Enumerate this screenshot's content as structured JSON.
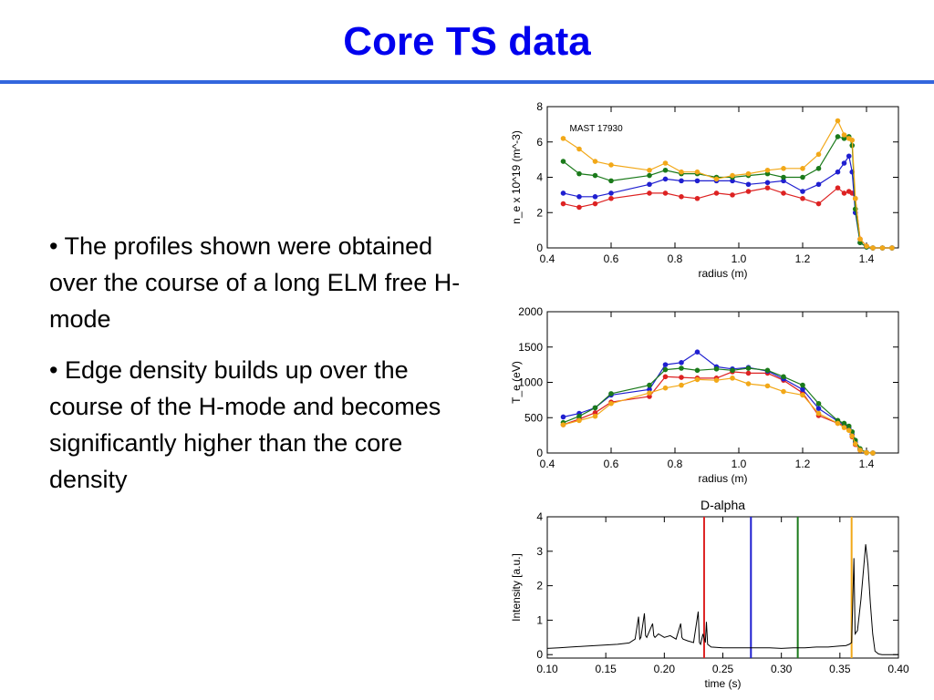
{
  "slide": {
    "title": "Core TS data",
    "title_color": "#0000ee",
    "rule_color": "#3366dd",
    "bullets": [
      "• The profiles shown were obtained over the course of a long ELM free H-mode",
      "• Edge density builds up over the course of the H-mode and becomes significantly higher than the core density"
    ]
  },
  "series_colors": {
    "red": "#dd2222",
    "blue": "#1f1fd0",
    "green": "#1a7a1a",
    "orange": "#f2a818"
  },
  "chart_data": [
    {
      "type": "line",
      "title": "",
      "annotation": "MAST 17930",
      "xlabel": "radius (m)",
      "ylabel": "n_e x 10^19 (m^-3)",
      "xlim": [
        0.4,
        1.5
      ],
      "ylim": [
        0,
        8
      ],
      "xticks": [
        "0.4",
        "0.6",
        "0.8",
        "1.0",
        "1.2",
        "1.4"
      ],
      "xtick_values": [
        0.4,
        0.6,
        0.8,
        1.0,
        1.2,
        1.4
      ],
      "yticks": [
        "0",
        "2",
        "4",
        "6",
        "8"
      ],
      "ytick_values": [
        0,
        2,
        4,
        6,
        8
      ],
      "series": [
        {
          "color": "red",
          "x": [
            0.45,
            0.5,
            0.55,
            0.6,
            0.72,
            0.77,
            0.82,
            0.87,
            0.93,
            0.98,
            1.03,
            1.09,
            1.14,
            1.2,
            1.25,
            1.31,
            1.33,
            1.345,
            1.355,
            1.365,
            1.38,
            1.4,
            1.42,
            1.45,
            1.48
          ],
          "y": [
            2.5,
            2.3,
            2.5,
            2.8,
            3.1,
            3.1,
            2.9,
            2.8,
            3.1,
            3.0,
            3.2,
            3.4,
            3.1,
            2.8,
            2.5,
            3.4,
            3.1,
            3.2,
            3.1,
            2.8,
            0.5,
            0.1,
            0.0,
            0.0,
            0.0
          ]
        },
        {
          "color": "blue",
          "x": [
            0.45,
            0.5,
            0.55,
            0.6,
            0.72,
            0.77,
            0.82,
            0.87,
            0.93,
            0.98,
            1.03,
            1.09,
            1.14,
            1.2,
            1.25,
            1.31,
            1.33,
            1.345,
            1.355,
            1.365,
            1.38,
            1.4,
            1.42,
            1.45,
            1.48
          ],
          "y": [
            3.1,
            2.9,
            2.9,
            3.1,
            3.6,
            3.9,
            3.8,
            3.8,
            3.8,
            3.8,
            3.6,
            3.7,
            3.8,
            3.2,
            3.6,
            4.3,
            4.8,
            5.2,
            4.3,
            2.0,
            0.3,
            0.05,
            0.0,
            0.0,
            0.0
          ]
        },
        {
          "color": "green",
          "x": [
            0.45,
            0.5,
            0.55,
            0.6,
            0.72,
            0.77,
            0.82,
            0.87,
            0.93,
            0.98,
            1.03,
            1.09,
            1.14,
            1.2,
            1.25,
            1.31,
            1.33,
            1.345,
            1.355,
            1.365,
            1.38,
            1.4,
            1.42,
            1.45,
            1.48
          ],
          "y": [
            4.9,
            4.2,
            4.1,
            3.8,
            4.1,
            4.4,
            4.2,
            4.2,
            4.0,
            4.0,
            4.1,
            4.2,
            4.0,
            4.0,
            4.5,
            6.3,
            6.2,
            6.3,
            5.8,
            2.2,
            0.3,
            0.05,
            0.0,
            0.0,
            0.0
          ]
        },
        {
          "color": "orange",
          "x": [
            0.45,
            0.5,
            0.55,
            0.6,
            0.72,
            0.77,
            0.82,
            0.87,
            0.93,
            0.98,
            1.03,
            1.09,
            1.14,
            1.2,
            1.25,
            1.31,
            1.33,
            1.345,
            1.355,
            1.365,
            1.38,
            1.4,
            1.42,
            1.45,
            1.48
          ],
          "y": [
            6.2,
            5.6,
            4.9,
            4.7,
            4.4,
            4.8,
            4.3,
            4.3,
            3.9,
            4.1,
            4.2,
            4.4,
            4.5,
            4.5,
            5.3,
            7.2,
            6.4,
            6.2,
            6.1,
            2.8,
            0.5,
            0.1,
            0.0,
            0.0,
            0.0
          ]
        }
      ]
    },
    {
      "type": "line",
      "title": "",
      "xlabel": "radius (m)",
      "ylabel": "T_e (eV)",
      "xlim": [
        0.4,
        1.5
      ],
      "ylim": [
        0,
        2000
      ],
      "xticks": [
        "0.4",
        "0.6",
        "0.8",
        "1.0",
        "1.2",
        "1.4"
      ],
      "xtick_values": [
        0.4,
        0.6,
        0.8,
        1.0,
        1.2,
        1.4
      ],
      "yticks": [
        "0",
        "500",
        "1000",
        "1500",
        "2000"
      ],
      "ytick_values": [
        0,
        500,
        1000,
        1500,
        2000
      ],
      "series": [
        {
          "color": "red",
          "x": [
            0.45,
            0.5,
            0.55,
            0.6,
            0.72,
            0.77,
            0.82,
            0.87,
            0.93,
            0.98,
            1.03,
            1.09,
            1.14,
            1.2,
            1.25,
            1.31,
            1.33,
            1.345,
            1.355,
            1.365,
            1.38,
            1.4,
            1.42
          ],
          "y": [
            400,
            480,
            570,
            720,
            800,
            1080,
            1070,
            1060,
            1060,
            1150,
            1130,
            1130,
            1030,
            850,
            530,
            420,
            390,
            330,
            230,
            120,
            40,
            5,
            0
          ]
        },
        {
          "color": "blue",
          "x": [
            0.45,
            0.5,
            0.55,
            0.6,
            0.72,
            0.77,
            0.82,
            0.87,
            0.93,
            0.98,
            1.03,
            1.09,
            1.14,
            1.2,
            1.25,
            1.31,
            1.33,
            1.345,
            1.355,
            1.365,
            1.38,
            1.4,
            1.42
          ],
          "y": [
            510,
            560,
            640,
            820,
            900,
            1250,
            1280,
            1430,
            1220,
            1190,
            1210,
            1160,
            1050,
            900,
            630,
            450,
            400,
            350,
            260,
            150,
            50,
            5,
            0
          ]
        },
        {
          "color": "green",
          "x": [
            0.45,
            0.5,
            0.55,
            0.6,
            0.72,
            0.77,
            0.82,
            0.87,
            0.93,
            0.98,
            1.03,
            1.09,
            1.14,
            1.2,
            1.25,
            1.31,
            1.33,
            1.345,
            1.355,
            1.365,
            1.38,
            1.4,
            1.42
          ],
          "y": [
            430,
            520,
            640,
            840,
            960,
            1180,
            1200,
            1170,
            1190,
            1170,
            1200,
            1170,
            1080,
            960,
            700,
            460,
            420,
            380,
            300,
            180,
            60,
            5,
            0
          ]
        },
        {
          "color": "orange",
          "x": [
            0.45,
            0.5,
            0.55,
            0.6,
            0.72,
            0.77,
            0.82,
            0.87,
            0.93,
            0.98,
            1.03,
            1.09,
            1.14,
            1.2,
            1.25,
            1.31,
            1.33,
            1.345,
            1.355,
            1.365,
            1.38,
            1.4,
            1.42
          ],
          "y": [
            400,
            460,
            520,
            700,
            850,
            920,
            960,
            1040,
            1030,
            1060,
            980,
            950,
            870,
            820,
            560,
            420,
            360,
            320,
            240,
            130,
            40,
            5,
            0
          ]
        }
      ]
    },
    {
      "type": "line",
      "title": "D-alpha",
      "xlabel": "time (s)",
      "ylabel": "Intensity [a.u.]",
      "xlim": [
        0.1,
        0.4
      ],
      "ylim": [
        -0.1,
        4
      ],
      "xticks": [
        "0.10",
        "0.15",
        "0.20",
        "0.25",
        "0.30",
        "0.35",
        "0.40"
      ],
      "xtick_values": [
        0.1,
        0.15,
        0.2,
        0.25,
        0.3,
        0.35,
        0.4
      ],
      "yticks": [
        "0",
        "1",
        "2",
        "3",
        "4"
      ],
      "ytick_values": [
        0,
        1,
        2,
        3,
        4
      ],
      "markers": [
        {
          "time": 0.234,
          "color": "red"
        },
        {
          "time": 0.274,
          "color": "blue"
        },
        {
          "time": 0.314,
          "color": "green"
        },
        {
          "time": 0.36,
          "color": "orange"
        }
      ],
      "series": [
        {
          "color": "#000000",
          "x": [
            0.1,
            0.11,
            0.12,
            0.13,
            0.14,
            0.15,
            0.16,
            0.17,
            0.175,
            0.178,
            0.179,
            0.18,
            0.183,
            0.184,
            0.185,
            0.19,
            0.191,
            0.192,
            0.195,
            0.2,
            0.205,
            0.21,
            0.214,
            0.215,
            0.216,
            0.22,
            0.225,
            0.229,
            0.23,
            0.231,
            0.233,
            0.235,
            0.236,
            0.237,
            0.24,
            0.25,
            0.26,
            0.27,
            0.28,
            0.29,
            0.3,
            0.31,
            0.32,
            0.33,
            0.34,
            0.35,
            0.355,
            0.358,
            0.36,
            0.362,
            0.363,
            0.365,
            0.368,
            0.37,
            0.372,
            0.374,
            0.376,
            0.378,
            0.38,
            0.383,
            0.386,
            0.39,
            0.4
          ],
          "y": [
            0.18,
            0.2,
            0.22,
            0.24,
            0.26,
            0.28,
            0.3,
            0.34,
            0.45,
            1.1,
            0.45,
            0.5,
            1.2,
            0.55,
            0.5,
            0.9,
            0.55,
            0.5,
            0.6,
            0.5,
            0.55,
            0.45,
            0.9,
            0.5,
            0.45,
            0.4,
            0.35,
            1.25,
            0.35,
            0.3,
            0.6,
            0.35,
            0.95,
            0.3,
            0.22,
            0.2,
            0.2,
            0.2,
            0.2,
            0.2,
            0.18,
            0.2,
            0.2,
            0.22,
            0.22,
            0.25,
            0.26,
            0.3,
            0.35,
            2.8,
            0.6,
            0.7,
            1.6,
            2.4,
            3.2,
            2.6,
            1.5,
            0.6,
            0.1,
            0.02,
            0.0,
            0.0,
            0.0
          ]
        }
      ]
    }
  ]
}
